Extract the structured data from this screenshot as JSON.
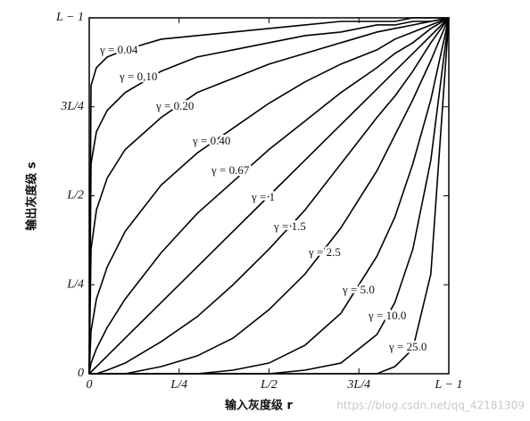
{
  "chart_data": {
    "type": "line",
    "xlabel": "输入灰度级 r",
    "ylabel": "输出灰度级 s",
    "watermark": "https://blog.csdn.net/qq_42181309",
    "x": [
      0,
      0.005,
      0.02,
      0.05,
      0.1,
      0.2,
      0.3,
      0.4,
      0.5,
      0.6,
      0.7,
      0.8,
      0.85,
      0.9,
      0.95,
      1
    ],
    "xlim": [
      0,
      1
    ],
    "ylim": [
      0,
      1
    ],
    "xticks": [
      0,
      {
        "value": 0.25,
        "label": "L/4"
      },
      {
        "value": 0.5,
        "label": "L/2"
      },
      {
        "value": 0.75,
        "label": "3L/4"
      },
      {
        "value": 1,
        "label": "L − 1"
      }
    ],
    "yticks": [
      0,
      {
        "value": 0.25,
        "label": "L/4"
      },
      {
        "value": 0.5,
        "label": "L/2"
      },
      {
        "value": 0.75,
        "label": "3L/4"
      },
      {
        "value": 1,
        "label": "L − 1"
      }
    ],
    "series": [
      {
        "name": "γ = 0.04",
        "color": "#000000",
        "values": [
          0,
          0.81,
          0.86,
          0.89,
          0.91,
          0.94,
          0.95,
          0.96,
          0.97,
          0.98,
          0.99,
          0.99,
          0.99,
          1,
          1,
          1
        ]
      },
      {
        "name": "γ = 0.10",
        "color": "#000000",
        "values": [
          0,
          0.59,
          0.68,
          0.74,
          0.79,
          0.85,
          0.89,
          0.91,
          0.93,
          0.95,
          0.96,
          0.98,
          0.98,
          0.99,
          0.99,
          1
        ]
      },
      {
        "name": "γ = 0.20",
        "color": "#000000",
        "values": [
          0,
          0.35,
          0.46,
          0.55,
          0.63,
          0.72,
          0.79,
          0.83,
          0.87,
          0.9,
          0.93,
          0.96,
          0.97,
          0.98,
          0.99,
          1
        ]
      },
      {
        "name": "γ = 0.40",
        "color": "#000000",
        "values": [
          0,
          0.12,
          0.21,
          0.3,
          0.4,
          0.53,
          0.62,
          0.69,
          0.76,
          0.82,
          0.87,
          0.91,
          0.94,
          0.96,
          0.98,
          1
        ]
      },
      {
        "name": "γ = 0.67",
        "color": "#000000",
        "values": [
          0,
          0.03,
          0.07,
          0.13,
          0.21,
          0.34,
          0.45,
          0.54,
          0.63,
          0.71,
          0.79,
          0.86,
          0.9,
          0.93,
          0.97,
          1
        ]
      },
      {
        "name": "γ = 1",
        "color": "#000000",
        "values": [
          0,
          0.005,
          0.02,
          0.05,
          0.1,
          0.2,
          0.3,
          0.4,
          0.5,
          0.6,
          0.7,
          0.8,
          0.85,
          0.9,
          0.95,
          1
        ]
      },
      {
        "name": "γ = 1.5",
        "color": "#000000",
        "values": [
          0,
          0,
          0,
          0.01,
          0.03,
          0.09,
          0.16,
          0.25,
          0.35,
          0.46,
          0.59,
          0.72,
          0.78,
          0.85,
          0.93,
          1
        ]
      },
      {
        "name": "γ = 2.5",
        "color": "#000000",
        "values": [
          0,
          0,
          0,
          0,
          0,
          0.02,
          0.05,
          0.1,
          0.18,
          0.28,
          0.41,
          0.57,
          0.67,
          0.77,
          0.88,
          1
        ]
      },
      {
        "name": "γ = 5.0",
        "color": "#000000",
        "values": [
          0,
          0,
          0,
          0,
          0,
          0,
          0,
          0.01,
          0.03,
          0.08,
          0.17,
          0.33,
          0.44,
          0.59,
          0.77,
          1
        ]
      },
      {
        "name": "γ = 10.0",
        "color": "#000000",
        "values": [
          0,
          0,
          0,
          0,
          0,
          0,
          0,
          0,
          0,
          0.01,
          0.03,
          0.11,
          0.2,
          0.35,
          0.6,
          1
        ]
      },
      {
        "name": "γ = 25.0",
        "color": "#000000",
        "values": [
          0,
          0,
          0,
          0,
          0,
          0,
          0,
          0,
          0,
          0,
          0,
          0,
          0.02,
          0.07,
          0.28,
          1
        ]
      }
    ]
  }
}
